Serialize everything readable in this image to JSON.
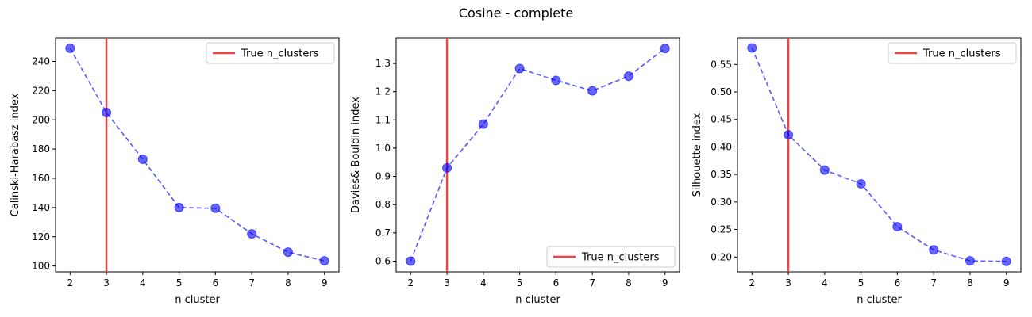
{
  "title": "Cosine - complete",
  "colors": {
    "series": "#0000ff",
    "marker": "#0000ff",
    "vline": "#ee4444"
  },
  "chart_data": [
    {
      "type": "line",
      "xlabel": "n cluster",
      "ylabel": "Calinski-Harabasz index",
      "x": [
        2,
        3,
        4,
        5,
        6,
        7,
        8,
        9
      ],
      "series": [
        {
          "values": [
            249,
            205,
            173,
            140,
            139.5,
            122,
            109.5,
            103.5
          ]
        }
      ],
      "xlim": [
        1.6,
        9.4
      ],
      "ylim": [
        96,
        256
      ],
      "xticks": [
        "2",
        "3",
        "4",
        "5",
        "6",
        "7",
        "8",
        "9"
      ],
      "yticks": [
        "100",
        "120",
        "140",
        "160",
        "180",
        "200",
        "220",
        "240"
      ],
      "vline": {
        "x": 3,
        "label": "True n_clusters"
      },
      "legend": "top-right",
      "grid": false
    },
    {
      "type": "line",
      "xlabel": "n cluster",
      "ylabel": "Davies&-Bouldin index",
      "x": [
        2,
        3,
        4,
        5,
        6,
        7,
        8,
        9
      ],
      "series": [
        {
          "values": [
            0.6,
            0.93,
            1.085,
            1.282,
            1.24,
            1.203,
            1.255,
            1.353
          ]
        }
      ],
      "xlim": [
        1.6,
        9.4
      ],
      "ylim": [
        0.562,
        1.39
      ],
      "xticks": [
        "2",
        "3",
        "4",
        "5",
        "6",
        "7",
        "8",
        "9"
      ],
      "yticks": [
        "0.6",
        "0.7",
        "0.8",
        "0.9",
        "1.0",
        "1.1",
        "1.2",
        "1.3"
      ],
      "vline": {
        "x": 3,
        "label": "True n_clusters"
      },
      "legend": "bottom-right",
      "grid": false
    },
    {
      "type": "line",
      "xlabel": "n cluster",
      "ylabel": "Silhouette index",
      "x": [
        2,
        3,
        4,
        5,
        6,
        7,
        8,
        9
      ],
      "series": [
        {
          "values": [
            0.58,
            0.422,
            0.358,
            0.333,
            0.255,
            0.213,
            0.193,
            0.192
          ]
        }
      ],
      "xlim": [
        1.6,
        9.4
      ],
      "ylim": [
        0.173,
        0.598
      ],
      "xticks": [
        "2",
        "3",
        "4",
        "5",
        "6",
        "7",
        "8",
        "9"
      ],
      "yticks": [
        "0.20",
        "0.25",
        "0.30",
        "0.35",
        "0.40",
        "0.45",
        "0.50",
        "0.55"
      ],
      "vline": {
        "x": 3,
        "label": "True n_clusters"
      },
      "legend": "top-right",
      "grid": false
    }
  ]
}
